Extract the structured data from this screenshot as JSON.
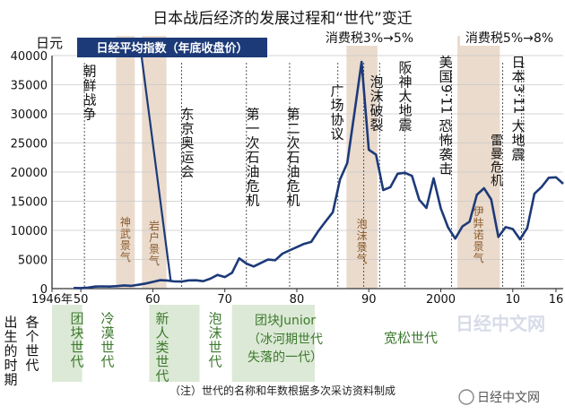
{
  "chart_data": {
    "type": "line",
    "title": "日本战后经济的发展过程和“世代”变迁",
    "ylabel": "日元",
    "ylim": [
      0,
      40000
    ],
    "yticks": [
      0,
      5000,
      10000,
      15000,
      20000,
      25000,
      30000,
      35000,
      40000
    ],
    "xlim": [
      1946,
      2017
    ],
    "xticks": [
      {
        "year": 1946,
        "label": "1946年"
      },
      {
        "year": 1950,
        "label": "50"
      },
      {
        "year": 1960,
        "label": "60"
      },
      {
        "year": 1970,
        "label": "70"
      },
      {
        "year": 1980,
        "label": "80"
      },
      {
        "year": 1990,
        "label": "90"
      },
      {
        "year": 2000,
        "label": "2000"
      },
      {
        "year": 2010,
        "label": "10"
      },
      {
        "year": 2016,
        "label": "16"
      }
    ],
    "series": [
      {
        "name": "日经平均指数（年底收盘价）",
        "color": "#1d3a78",
        "points": [
          [
            1949,
            110
          ],
          [
            1950,
            100
          ],
          [
            1951,
            170
          ],
          [
            1952,
            360
          ],
          [
            1953,
            380
          ],
          [
            1954,
            360
          ],
          [
            1955,
            430
          ],
          [
            1956,
            550
          ],
          [
            1957,
            480
          ],
          [
            1958,
            660
          ],
          [
            1959,
            870
          ],
          [
            1960,
            1150
          ],
          [
            1961,
            1450
          ],
          [
            1962,
            1400
          ],
          [
            1963,
            1230
          ],
          [
            1964,
            1220
          ],
          [
            1965,
            1420
          ],
          [
            1966,
            1430
          ],
          [
            1967,
            1280
          ],
          [
            1968,
            1710
          ],
          [
            1969,
            2360
          ],
          [
            1970,
            1990
          ],
          [
            1971,
            2710
          ],
          [
            1972,
            5200
          ],
          [
            1973,
            4300
          ],
          [
            1974,
            3800
          ],
          [
            1975,
            4400
          ],
          [
            1976,
            4990
          ],
          [
            1977,
            4870
          ],
          [
            1978,
            6000
          ],
          [
            1979,
            6570
          ],
          [
            1980,
            7120
          ],
          [
            1981,
            7680
          ],
          [
            1982,
            8020
          ],
          [
            1983,
            9890
          ],
          [
            1984,
            11540
          ],
          [
            1985,
            13110
          ],
          [
            1986,
            18700
          ],
          [
            1987,
            21560
          ],
          [
            1988,
            30160
          ],
          [
            1989,
            38920
          ],
          [
            1990,
            23850
          ],
          [
            1991,
            22980
          ],
          [
            1992,
            16920
          ],
          [
            1993,
            17420
          ],
          [
            1994,
            19720
          ],
          [
            1995,
            19870
          ],
          [
            1996,
            19360
          ],
          [
            1997,
            15260
          ],
          [
            1998,
            13840
          ],
          [
            1999,
            18930
          ],
          [
            2000,
            13790
          ],
          [
            2001,
            10540
          ],
          [
            2002,
            8580
          ],
          [
            2003,
            10680
          ],
          [
            2004,
            11490
          ],
          [
            2005,
            16110
          ],
          [
            2006,
            17230
          ],
          [
            2007,
            15310
          ],
          [
            2008,
            8860
          ],
          [
            2009,
            10550
          ],
          [
            2010,
            10230
          ],
          [
            2011,
            8460
          ],
          [
            2012,
            10400
          ],
          [
            2013,
            16290
          ],
          [
            2014,
            17450
          ],
          [
            2015,
            19030
          ],
          [
            2016,
            19110
          ],
          [
            2017,
            18000
          ]
        ]
      }
    ],
    "shaded_periods": [
      {
        "label": "神武景气",
        "start": 1954.9,
        "end": 1957.5
      },
      {
        "label": "岩户景气",
        "start": 1958.5,
        "end": 1961.9
      },
      {
        "label": "泡沫景气",
        "start": 1986.9,
        "end": 1991.2
      },
      {
        "label": "伊弉诺景气",
        "start": 2002.3,
        "end": 2008.2
      }
    ],
    "events": [
      {
        "label": "朝鲜战争",
        "year": 1950.5
      },
      {
        "label": "东京奥运会",
        "year": 1964
      },
      {
        "label": "第一次石油危机",
        "year": 1973
      },
      {
        "label": "第二次石油危机",
        "year": 1979
      },
      {
        "label": "广场协议",
        "year": 1985.7
      },
      {
        "label": "消费税3%→5%",
        "year": 1989.3
      },
      {
        "label": "泡沫破裂",
        "year": 1991.5
      },
      {
        "label": "阪神大地震",
        "year": 1995
      },
      {
        "label": "美国9·11恐怖袭击",
        "year": 2001.5
      },
      {
        "label": "雷曼危机",
        "year": 2008.6
      },
      {
        "label": "消费税5%→8%",
        "year": 2011.5
      },
      {
        "label": "日本3·11大地震",
        "year": 2011.2
      }
    ],
    "generations": [
      {
        "label": "团块世代",
        "start": 1946,
        "end": 1950.2
      },
      {
        "label": "冷漠世代",
        "start": 1950.2,
        "end": 1959.5
      },
      {
        "label": "新人类世代",
        "start": 1959.5,
        "end": 1966.5
      },
      {
        "label": "泡沫世代",
        "start": 1966.5,
        "end": 1971
      },
      {
        "label": "团块Junior",
        "start": 1971,
        "end": 1982.5
      },
      {
        "label": "（冰河期世代",
        "start": 1971,
        "end": 1982.5
      },
      {
        "label": "失落的一代）",
        "start": 1971,
        "end": 1982.5
      },
      {
        "label": "宽松世代",
        "start": 1982.5,
        "end": 2008
      }
    ],
    "row_label": "出生的时期",
    "row_label2": "各个世代",
    "note": "（注）世代的名称和年数根据多次采访资料制成",
    "watermark": "日经中文网",
    "footer_brand": "日经中文网"
  }
}
